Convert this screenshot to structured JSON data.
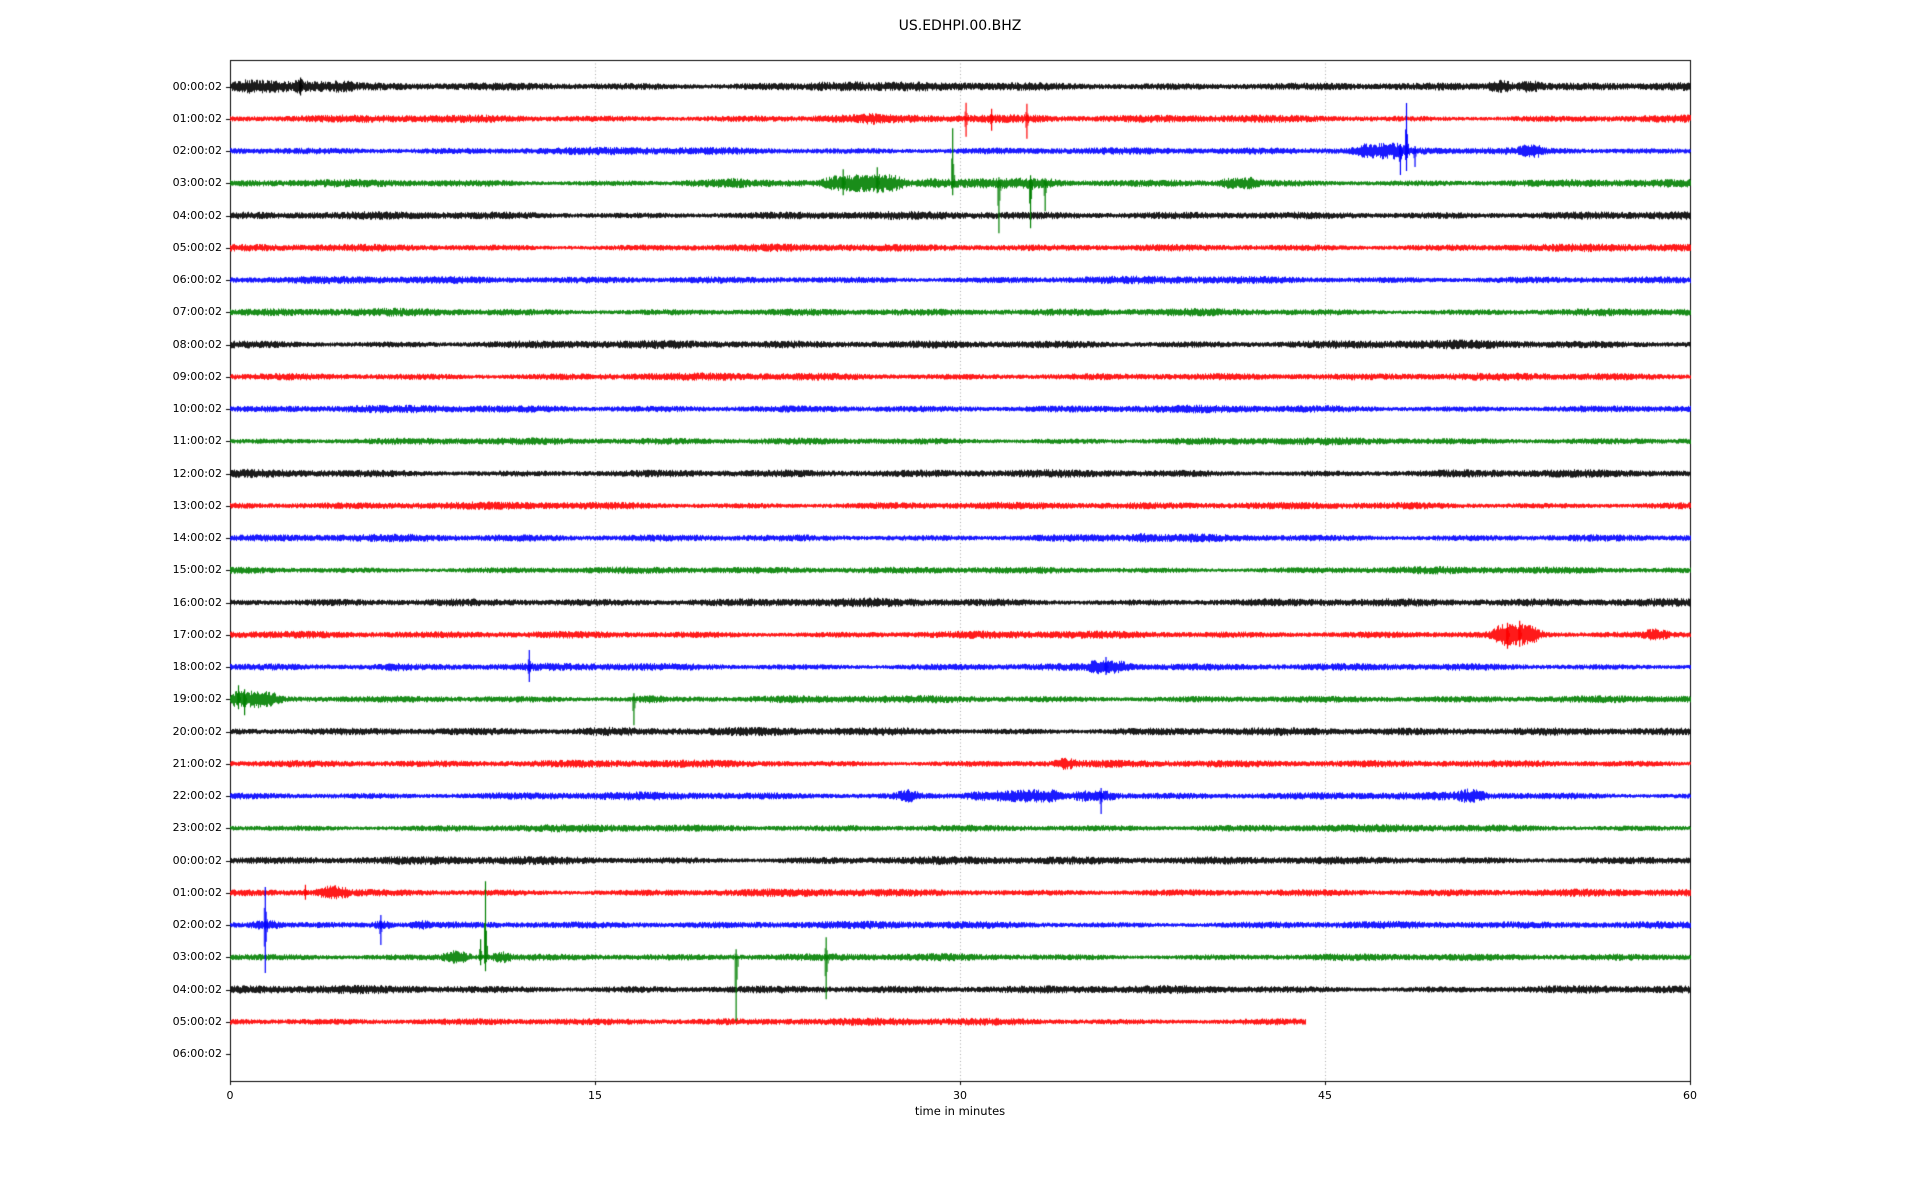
{
  "chart_data": {
    "type": "line",
    "subtype": "seismogram-helicorder",
    "title": "US.EDHPI.00.BHZ",
    "xlabel": "time in minutes",
    "x_ticks": [
      "0",
      "15",
      "30",
      "45",
      "60"
    ],
    "x_range": [
      0,
      60
    ],
    "minutes_per_row": 60,
    "grid": {
      "vertical_dotted_at": [
        15,
        30,
        45
      ],
      "gridline_color": "#aaaaaa"
    },
    "trace_colors_cycle": [
      "#000000",
      "#ff0000",
      "#0000ff",
      "#008000"
    ],
    "rows": [
      {
        "label": "00:00:02",
        "color": "#000000",
        "start_min": 0,
        "end_min": 60,
        "amp": 4.5,
        "events": [
          [
            0.4,
            5.0,
            1.8
          ],
          [
            2.6,
            3.2,
            2.6
          ],
          [
            24.0,
            26.0,
            1.4
          ],
          [
            51.8,
            52.6,
            2.4
          ],
          [
            53.0,
            53.7,
            2.1
          ]
        ],
        "spikes": [
          [
            2.9,
            9,
            9
          ]
        ]
      },
      {
        "label": "01:00:02",
        "color": "#ff0000",
        "start_min": 0,
        "end_min": 60,
        "amp": 4.0,
        "events": [
          [
            24.0,
            33.5,
            1.3
          ],
          [
            26.1,
            26.5,
            1.9
          ]
        ],
        "spikes": [
          [
            30.25,
            16,
            18
          ],
          [
            31.3,
            10,
            12
          ],
          [
            32.75,
            15,
            20
          ]
        ]
      },
      {
        "label": "02:00:02",
        "color": "#0000ff",
        "start_min": 0,
        "end_min": 60,
        "amp": 4.0,
        "events": [
          [
            46.3,
            48.2,
            2.1
          ],
          [
            53.2,
            53.8,
            2.3
          ]
        ],
        "spikes": [
          [
            48.35,
            48,
            20
          ],
          [
            48.1,
            7,
            24
          ],
          [
            48.7,
            5,
            16
          ]
        ]
      },
      {
        "label": "03:00:02",
        "color": "#008000",
        "start_min": 0,
        "end_min": 60,
        "amp": 4.0,
        "events": [
          [
            18.5,
            21.0,
            1.5
          ],
          [
            24.5,
            27.5,
            2.3
          ],
          [
            28.5,
            34.0,
            1.6
          ],
          [
            40.8,
            42.2,
            2.0
          ]
        ],
        "spikes": [
          [
            25.2,
            14,
            12
          ],
          [
            26.6,
            16,
            10
          ],
          [
            29.7,
            55,
            12
          ],
          [
            31.6,
            6,
            50
          ],
          [
            32.9,
            8,
            45
          ],
          [
            33.5,
            5,
            28
          ]
        ]
      },
      {
        "label": "04:00:02",
        "color": "#000000",
        "start_min": 0,
        "end_min": 60,
        "amp": 4.3,
        "events": [],
        "spikes": []
      },
      {
        "label": "05:00:02",
        "color": "#ff0000",
        "start_min": 0,
        "end_min": 60,
        "amp": 4.0,
        "events": [],
        "spikes": []
      },
      {
        "label": "06:00:02",
        "color": "#0000ff",
        "start_min": 0,
        "end_min": 60,
        "amp": 4.0,
        "events": [],
        "spikes": []
      },
      {
        "label": "07:00:02",
        "color": "#008000",
        "start_min": 0,
        "end_min": 60,
        "amp": 4.0,
        "events": [],
        "spikes": []
      },
      {
        "label": "08:00:02",
        "color": "#000000",
        "start_min": 0,
        "end_min": 60,
        "amp": 4.4,
        "events": [],
        "spikes": []
      },
      {
        "label": "09:00:02",
        "color": "#ff0000",
        "start_min": 0,
        "end_min": 60,
        "amp": 4.0,
        "events": [],
        "spikes": []
      },
      {
        "label": "10:00:02",
        "color": "#0000ff",
        "start_min": 0,
        "end_min": 60,
        "amp": 4.0,
        "events": [],
        "spikes": []
      },
      {
        "label": "11:00:02",
        "color": "#008000",
        "start_min": 0,
        "end_min": 60,
        "amp": 3.8,
        "events": [],
        "spikes": []
      },
      {
        "label": "12:00:02",
        "color": "#000000",
        "start_min": 0,
        "end_min": 60,
        "amp": 4.2,
        "events": [],
        "spikes": []
      },
      {
        "label": "13:00:02",
        "color": "#ff0000",
        "start_min": 0,
        "end_min": 60,
        "amp": 4.0,
        "events": [],
        "spikes": []
      },
      {
        "label": "14:00:02",
        "color": "#0000ff",
        "start_min": 0,
        "end_min": 60,
        "amp": 4.0,
        "events": [
          [
            37.2,
            37.8,
            1.4
          ]
        ],
        "spikes": []
      },
      {
        "label": "15:00:02",
        "color": "#008000",
        "start_min": 0,
        "end_min": 60,
        "amp": 3.8,
        "events": [],
        "spikes": []
      },
      {
        "label": "16:00:02",
        "color": "#000000",
        "start_min": 0,
        "end_min": 60,
        "amp": 4.4,
        "events": [],
        "spikes": []
      },
      {
        "label": "17:00:02",
        "color": "#ff0000",
        "start_min": 0,
        "end_min": 60,
        "amp": 4.0,
        "events": [
          [
            52.0,
            53.7,
            3.2
          ],
          [
            58.3,
            58.9,
            2.2
          ]
        ],
        "spikes": [
          [
            52.5,
            12,
            14
          ],
          [
            53.0,
            14,
            12
          ]
        ]
      },
      {
        "label": "18:00:02",
        "color": "#0000ff",
        "start_min": 0,
        "end_min": 60,
        "amp": 4.0,
        "events": [
          [
            6.5,
            7.1,
            1.4
          ],
          [
            35.4,
            36.8,
            2.1
          ]
        ],
        "spikes": [
          [
            12.3,
            17,
            15
          ],
          [
            36.0,
            10,
            8
          ]
        ]
      },
      {
        "label": "19:00:02",
        "color": "#008000",
        "start_min": 0,
        "end_min": 60,
        "amp": 3.9,
        "events": [
          [
            0.0,
            1.9,
            2.6
          ],
          [
            16.9,
            17.6,
            1.5
          ]
        ],
        "spikes": [
          [
            0.35,
            14,
            10
          ],
          [
            0.6,
            10,
            16
          ],
          [
            16.6,
            6,
            26
          ]
        ]
      },
      {
        "label": "20:00:02",
        "color": "#000000",
        "start_min": 0,
        "end_min": 60,
        "amp": 4.3,
        "events": [
          [
            14.5,
            16.5,
            1.25
          ],
          [
            27.0,
            30.0,
            1.2
          ]
        ],
        "spikes": []
      },
      {
        "label": "21:00:02",
        "color": "#ff0000",
        "start_min": 0,
        "end_min": 60,
        "amp": 4.0,
        "events": [
          [
            34.1,
            34.5,
            2.2
          ]
        ],
        "spikes": []
      },
      {
        "label": "22:00:02",
        "color": "#0000ff",
        "start_min": 0,
        "end_min": 60,
        "amp": 4.0,
        "events": [
          [
            27.5,
            28.2,
            2.2
          ],
          [
            30.3,
            34.0,
            1.9
          ],
          [
            34.8,
            36.3,
            2.0
          ],
          [
            50.6,
            51.4,
            1.9
          ]
        ],
        "spikes": [
          [
            35.8,
            8,
            18
          ]
        ]
      },
      {
        "label": "23:00:02",
        "color": "#008000",
        "start_min": 0,
        "end_min": 60,
        "amp": 3.9,
        "events": [],
        "spikes": []
      },
      {
        "label": "00:00:02",
        "color": "#000000",
        "start_min": 0,
        "end_min": 60,
        "amp": 4.4,
        "events": [],
        "spikes": []
      },
      {
        "label": "01:00:02",
        "color": "#ff0000",
        "start_min": 0,
        "end_min": 60,
        "amp": 4.0,
        "events": [
          [
            3.7,
            4.7,
            2.4
          ]
        ],
        "spikes": [
          [
            3.1,
            8,
            7
          ]
        ]
      },
      {
        "label": "02:00:02",
        "color": "#0000ff",
        "start_min": 0,
        "end_min": 60,
        "amp": 4.0,
        "events": [
          [
            1.0,
            1.9,
            2.0
          ],
          [
            6.0,
            6.5,
            2.2
          ],
          [
            7.6,
            8.0,
            2.0
          ]
        ],
        "spikes": [
          [
            1.45,
            38,
            48
          ],
          [
            6.2,
            10,
            20
          ]
        ]
      },
      {
        "label": "03:00:02",
        "color": "#008000",
        "start_min": 0,
        "end_min": 60,
        "amp": 3.9,
        "events": [
          [
            8.9,
            9.7,
            2.6
          ],
          [
            10.9,
            11.4,
            2.2
          ]
        ],
        "spikes": [
          [
            10.3,
            18,
            8
          ],
          [
            10.5,
            76,
            14
          ],
          [
            20.8,
            8,
            64
          ],
          [
            24.5,
            20,
            42
          ]
        ]
      },
      {
        "label": "04:00:02",
        "color": "#000000",
        "start_min": 0,
        "end_min": 60,
        "amp": 4.3,
        "events": [],
        "spikes": []
      },
      {
        "label": "05:00:02",
        "color": "#ff0000",
        "start_min": 0,
        "end_min": 44.2,
        "amp": 4.0,
        "events": [],
        "spikes": []
      },
      {
        "label": "06:00:02",
        "color": null,
        "start_min": 0,
        "end_min": null,
        "amp": 0,
        "events": [],
        "spikes": []
      }
    ]
  }
}
